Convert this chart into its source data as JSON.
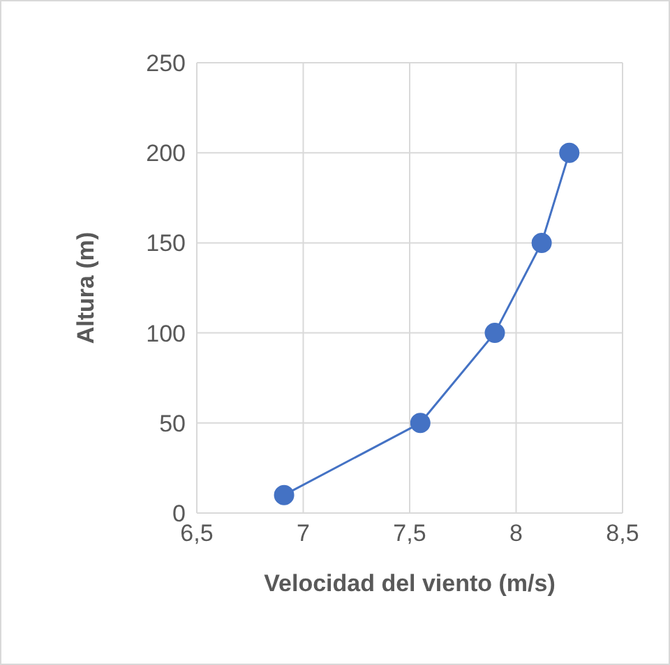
{
  "chart_data": {
    "type": "line",
    "xlabel": "Velocidad del viento (m/s)",
    "ylabel": "Altura (m)",
    "x": [
      6.91,
      7.55,
      7.9,
      8.12,
      8.25
    ],
    "series": [
      {
        "color": "#4472c4",
        "values": [
          10,
          50,
          100,
          150,
          200
        ]
      }
    ],
    "xlim": [
      6.5,
      8.5
    ],
    "xticks": [
      {
        "value": 6.5,
        "label": "6,5"
      },
      7,
      {
        "value": 7.5,
        "label": "7,5"
      },
      8,
      {
        "value": 8.5,
        "label": "8,5"
      }
    ],
    "ylim": [
      0,
      250
    ],
    "yticks": [
      0,
      50,
      100,
      150,
      200,
      250
    ],
    "grid": true,
    "legend": false,
    "marker": "circle",
    "line_style": "solid"
  }
}
